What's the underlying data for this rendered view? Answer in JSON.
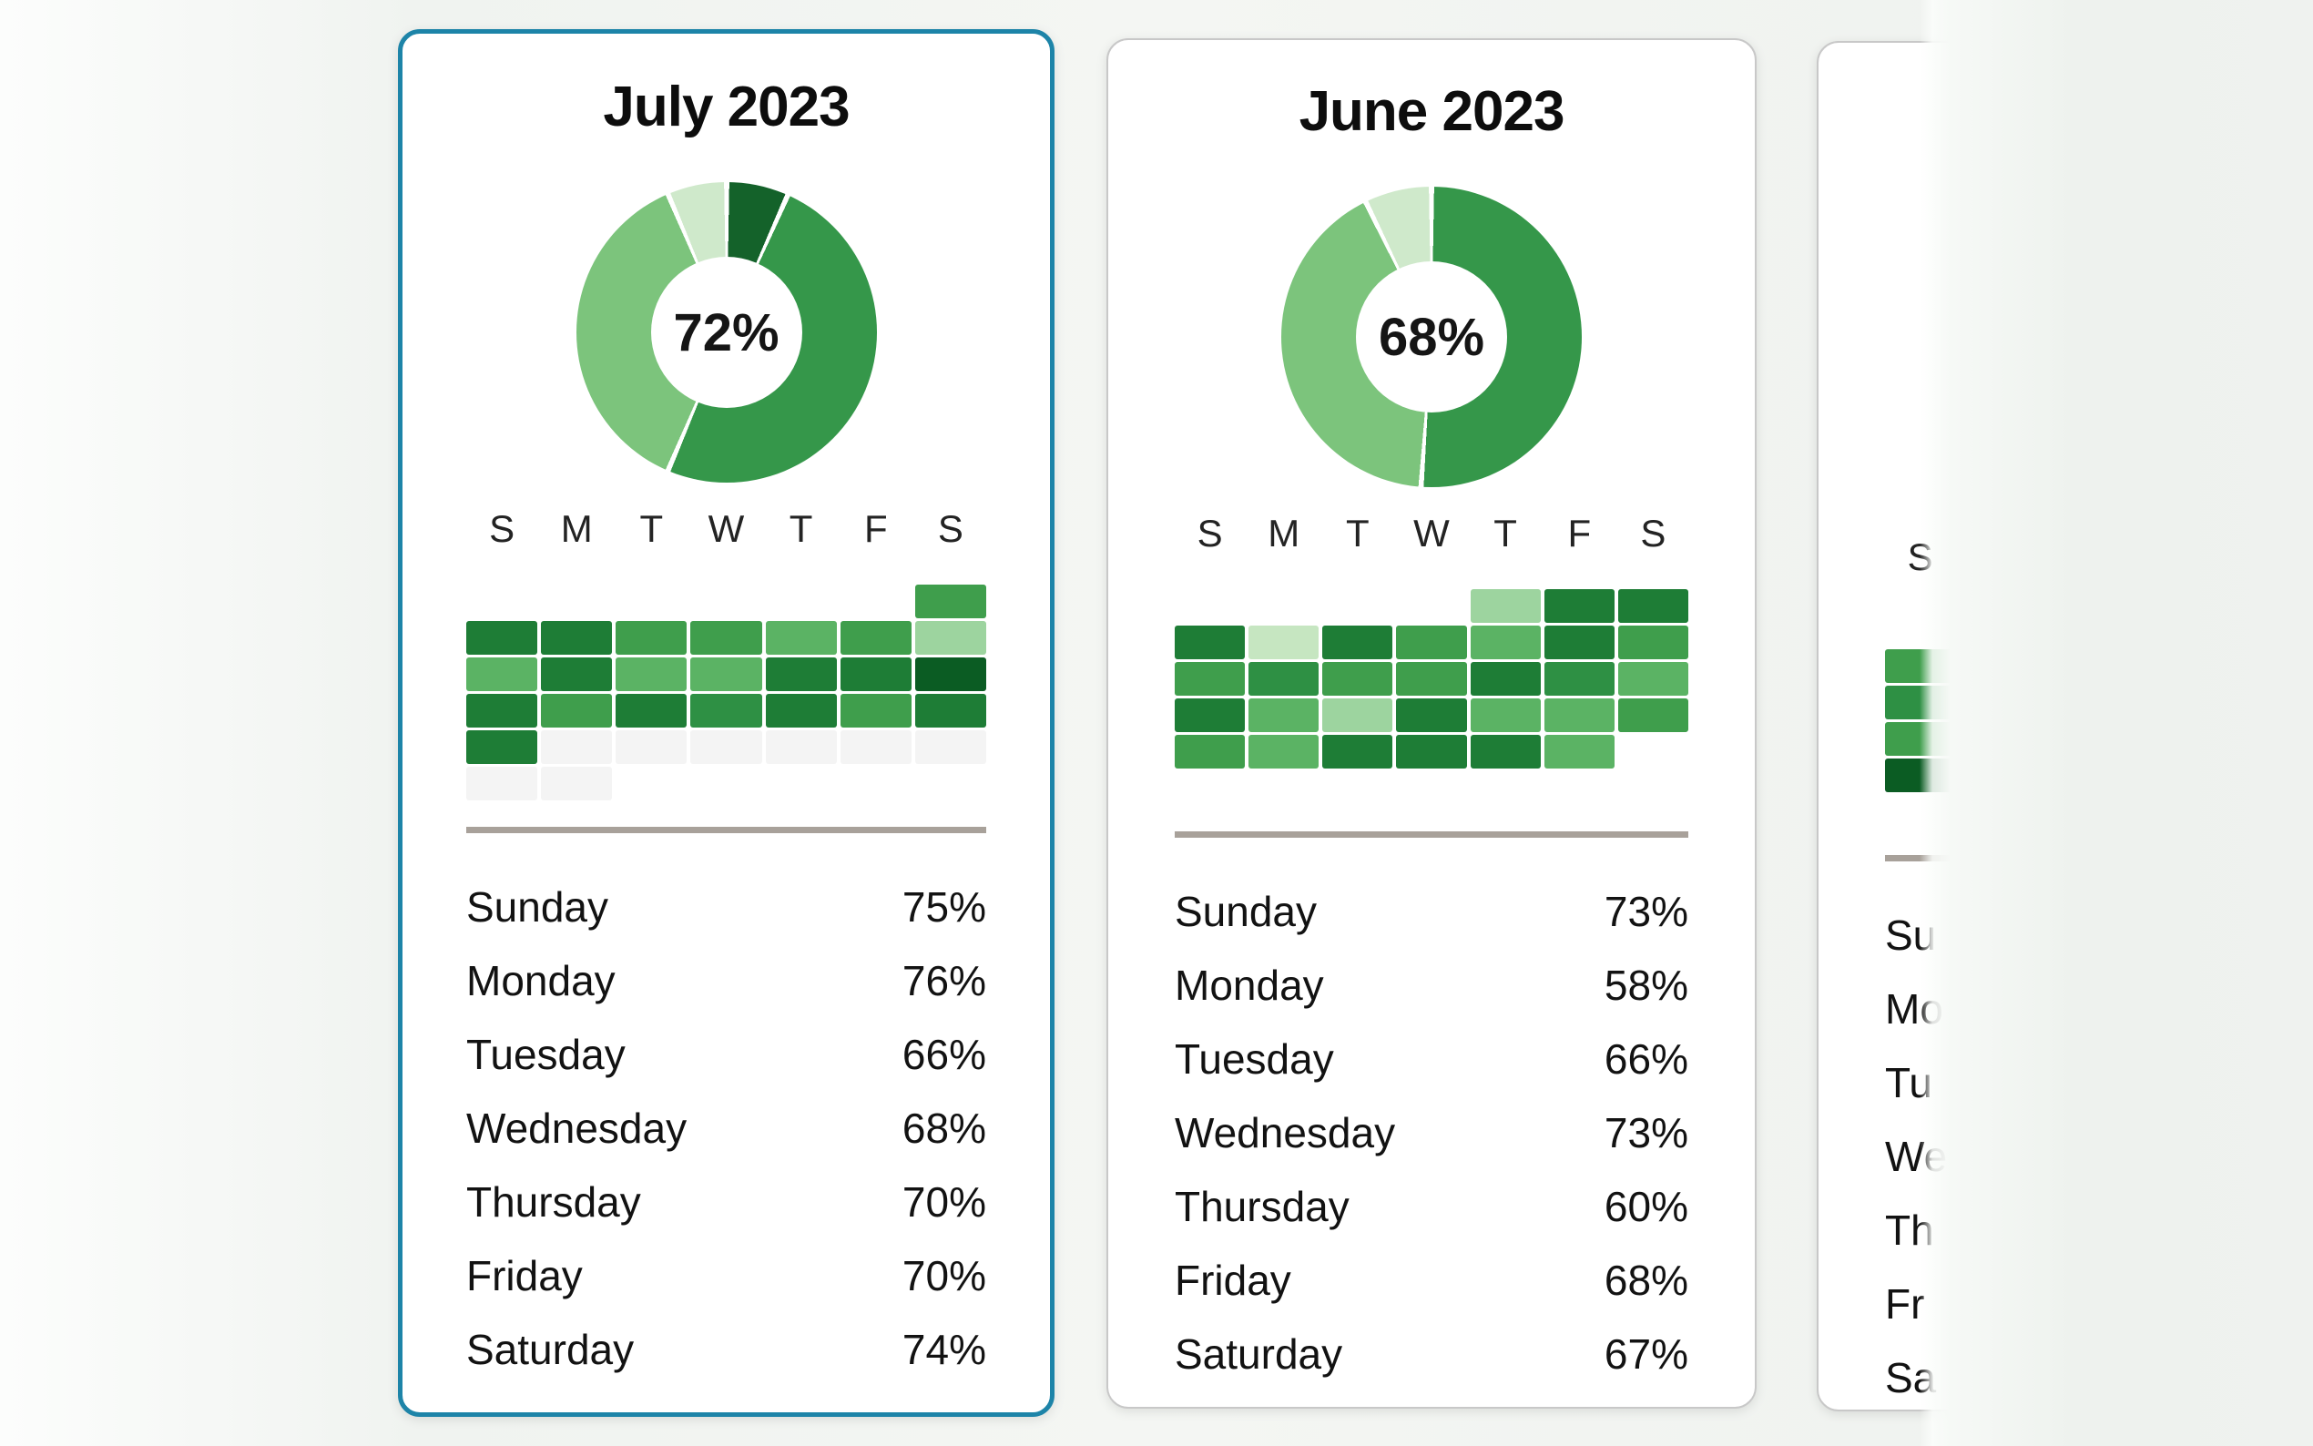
{
  "palette": {
    "selected_border": "#1d84a8",
    "card_border": "#c8c8c8",
    "card_bg": "#ffffff",
    "divider": "#a8a19a",
    "donut_colors": {
      "dark": "#14622a",
      "medium": "#35974a",
      "light": "#7cc47c",
      "pale": "#cfe9cb"
    },
    "heat_colors": {
      "e": "#f4f4f4",
      "p": "#c6e6c1",
      "l": "#9dd49f",
      "ml": "#5bb364",
      "m": "#3f9e4c",
      "md": "#2e9044",
      "d": "#1e7d36",
      "dd": "#0b5c23"
    }
  },
  "cards": [
    {
      "title": "July 2023",
      "selected": true,
      "donut": {
        "center_label": "72%",
        "segments": [
          [
            "dark",
            0,
            24
          ],
          [
            "medium",
            24,
            203
          ],
          [
            "light",
            203,
            337
          ],
          [
            "pale",
            337,
            360
          ]
        ]
      },
      "weekday_header": [
        "S",
        "M",
        "T",
        "W",
        "T",
        "F",
        "S"
      ],
      "heatmap": [
        [
          null,
          null,
          null,
          null,
          null,
          null,
          "m"
        ],
        [
          "d",
          "d",
          "m",
          "m",
          "ml",
          "m",
          "l"
        ],
        [
          "ml",
          "d",
          "ml",
          "ml",
          "d",
          "d",
          "dd"
        ],
        [
          "d",
          "m",
          "d",
          "md",
          "d",
          "m",
          "d"
        ],
        [
          "d",
          "e",
          "e",
          "e",
          "e",
          "e",
          "e"
        ],
        [
          "e",
          "e",
          null,
          null,
          null,
          null,
          null
        ]
      ],
      "days": [
        {
          "label": "Sunday",
          "value": "75%"
        },
        {
          "label": "Monday",
          "value": "76%"
        },
        {
          "label": "Tuesday",
          "value": "66%"
        },
        {
          "label": "Wednesday",
          "value": "68%"
        },
        {
          "label": "Thursday",
          "value": "70%"
        },
        {
          "label": "Friday",
          "value": "70%"
        },
        {
          "label": "Saturday",
          "value": "74%"
        }
      ]
    },
    {
      "title": "June 2023",
      "selected": false,
      "donut": {
        "center_label": "68%",
        "segments": [
          [
            "medium",
            0,
            184
          ],
          [
            "light",
            184,
            334
          ],
          [
            "pale",
            334,
            360
          ]
        ]
      },
      "weekday_header": [
        "S",
        "M",
        "T",
        "W",
        "T",
        "F",
        "S"
      ],
      "heatmap": [
        [
          null,
          null,
          null,
          null,
          "l",
          "d",
          "d"
        ],
        [
          "d",
          "p",
          "d",
          "m",
          "ml",
          "d",
          "m"
        ],
        [
          "m",
          "md",
          "m",
          "m",
          "d",
          "md",
          "ml"
        ],
        [
          "d",
          "ml",
          "l",
          "d",
          "ml",
          "ml",
          "m"
        ],
        [
          "m",
          "ml",
          "d",
          "d",
          "d",
          "ml",
          null
        ],
        [
          null,
          null,
          null,
          null,
          null,
          null,
          null
        ]
      ],
      "days": [
        {
          "label": "Sunday",
          "value": "73%"
        },
        {
          "label": "Monday",
          "value": "58%"
        },
        {
          "label": "Tuesday",
          "value": "66%"
        },
        {
          "label": "Wednesday",
          "value": "73%"
        },
        {
          "label": "Thursday",
          "value": "60%"
        },
        {
          "label": "Friday",
          "value": "68%"
        },
        {
          "label": "Saturday",
          "value": "67%"
        }
      ]
    },
    {
      "title": "",
      "selected": false,
      "donut": null,
      "weekday_header": [
        "S"
      ],
      "heatmap": [
        [
          null,
          null,
          null,
          null,
          null,
          null,
          null
        ],
        [
          "m",
          null,
          null,
          null,
          null,
          null,
          null
        ],
        [
          "md",
          null,
          null,
          null,
          null,
          null,
          null
        ],
        [
          "m",
          null,
          null,
          null,
          null,
          null,
          null
        ],
        [
          "dd",
          null,
          null,
          null,
          null,
          null,
          null
        ],
        [
          null,
          null,
          null,
          null,
          null,
          null,
          null
        ]
      ],
      "days": [
        {
          "label": "Su",
          "value": ""
        },
        {
          "label": "Mo",
          "value": ""
        },
        {
          "label": "Tu",
          "value": ""
        },
        {
          "label": "We",
          "value": ""
        },
        {
          "label": "Th",
          "value": ""
        },
        {
          "label": "Fr",
          "value": ""
        },
        {
          "label": "Sa",
          "value": ""
        }
      ]
    }
  ],
  "chart_data": [
    {
      "type": "pie",
      "title": "July 2023",
      "center_label": "72%",
      "slices": [
        {
          "name": "dark-green",
          "deg": 24
        },
        {
          "name": "medium-green",
          "deg": 179
        },
        {
          "name": "light-green",
          "deg": 134
        },
        {
          "name": "pale-green",
          "deg": 23
        }
      ],
      "legend_position": "none"
    },
    {
      "type": "heatmap",
      "title": "July 2023 daily calendar",
      "x_labels": [
        "S",
        "M",
        "T",
        "W",
        "T",
        "F",
        "S"
      ],
      "levels": [
        [
          null,
          null,
          null,
          null,
          null,
          null,
          "m"
        ],
        [
          "d",
          "d",
          "m",
          "m",
          "ml",
          "m",
          "l"
        ],
        [
          "ml",
          "d",
          "ml",
          "ml",
          "d",
          "d",
          "dd"
        ],
        [
          "d",
          "m",
          "d",
          "md",
          "d",
          "m",
          "d"
        ],
        [
          "d",
          "e",
          "e",
          "e",
          "e",
          "e",
          "e"
        ],
        [
          "e",
          "e",
          null,
          null,
          null,
          null,
          null
        ]
      ]
    },
    {
      "type": "table",
      "title": "July 2023 weekday percentages",
      "categories": [
        "Sunday",
        "Monday",
        "Tuesday",
        "Wednesday",
        "Thursday",
        "Friday",
        "Saturday"
      ],
      "values": [
        75,
        76,
        66,
        68,
        70,
        70,
        74
      ]
    },
    {
      "type": "pie",
      "title": "June 2023",
      "center_label": "68%",
      "slices": [
        {
          "name": "medium-green",
          "deg": 184
        },
        {
          "name": "light-green",
          "deg": 150
        },
        {
          "name": "pale-green",
          "deg": 26
        }
      ],
      "legend_position": "none"
    },
    {
      "type": "heatmap",
      "title": "June 2023 daily calendar",
      "x_labels": [
        "S",
        "M",
        "T",
        "W",
        "T",
        "F",
        "S"
      ],
      "levels": [
        [
          null,
          null,
          null,
          null,
          "l",
          "d",
          "d"
        ],
        [
          "d",
          "p",
          "d",
          "m",
          "ml",
          "d",
          "m"
        ],
        [
          "m",
          "md",
          "m",
          "m",
          "d",
          "md",
          "ml"
        ],
        [
          "d",
          "ml",
          "l",
          "d",
          "ml",
          "ml",
          "m"
        ],
        [
          "m",
          "ml",
          "d",
          "d",
          "d",
          "ml",
          null
        ]
      ]
    },
    {
      "type": "table",
      "title": "June 2023 weekday percentages",
      "categories": [
        "Sunday",
        "Monday",
        "Tuesday",
        "Wednesday",
        "Thursday",
        "Friday",
        "Saturday"
      ],
      "values": [
        73,
        58,
        66,
        73,
        60,
        68,
        67
      ]
    }
  ]
}
